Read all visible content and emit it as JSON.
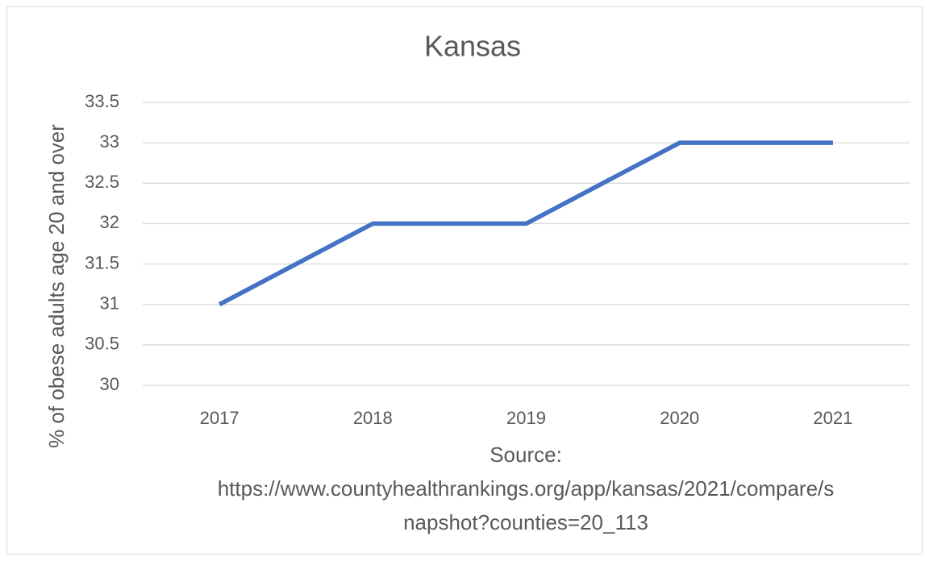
{
  "chart_data": {
    "type": "line",
    "title": "Kansas",
    "y_label": "% of obese adults age 20 and over",
    "x_label": [
      "Source:",
      "https://www.countyhealthrankings.org/app/kansas/2021/compare/s",
      "napshot?counties=20_113"
    ],
    "categories": [
      "2017",
      "2018",
      "2019",
      "2020",
      "2021"
    ],
    "series": [
      {
        "name": "Kansas",
        "color": "#4472c4",
        "values": [
          31,
          32,
          32,
          33,
          33
        ]
      }
    ],
    "ylim": [
      30,
      33.5
    ],
    "yticks": [
      30,
      30.5,
      31,
      31.5,
      32,
      32.5,
      33,
      33.5
    ],
    "grid": true
  }
}
